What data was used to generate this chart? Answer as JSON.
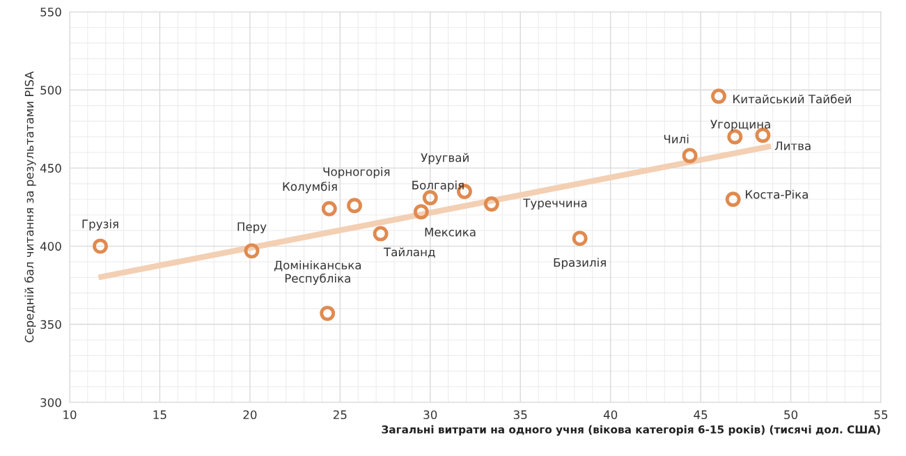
{
  "chart_data": {
    "type": "scatter",
    "xlabel": "Загальні витрати на одного учня (вікова категорія 6-15 років) (тисячі дол. США)",
    "ylabel": "Середній бал читання за результатами PISA",
    "xlim": [
      10,
      55
    ],
    "xticks": [
      10,
      15,
      20,
      25,
      30,
      35,
      40,
      45,
      50,
      55
    ],
    "ylim": [
      300,
      550
    ],
    "yticks": [
      300,
      350,
      400,
      450,
      500,
      550
    ],
    "grid": true,
    "series": [
      {
        "marker": "circle",
        "color": "#e08a4f",
        "x": [
          11.7,
          20.1,
          24.4,
          25.8,
          27.25,
          24.3,
          29.5,
          30.0,
          31.9,
          33.4,
          38.3,
          44.4,
          46.8,
          46.0,
          46.9,
          48.45
        ],
        "values": [
          400,
          397,
          424,
          426,
          408,
          357,
          422,
          431,
          435,
          427,
          405,
          458,
          430,
          496,
          470,
          471
        ]
      },
      {
        "type": "line",
        "color": "#f3cfb3",
        "x": [
          11.6,
          48.9
        ],
        "values": [
          380,
          464
        ]
      }
    ],
    "annotations": [
      {
        "text": "Грузія",
        "x": 11.7,
        "y": 400
      },
      {
        "text": "Перу",
        "x": 20.1,
        "y": 397
      },
      {
        "text": "Колумбія",
        "x": 24.4,
        "y": 424
      },
      {
        "text": "Чорногорія",
        "x": 25.8,
        "y": 426
      },
      {
        "text": "Тайланд",
        "x": 27.25,
        "y": 408
      },
      {
        "text": "Домініканська\nРеспубліка",
        "x": 24.3,
        "y": 357
      },
      {
        "text": "Мексика",
        "x": 29.5,
        "y": 422
      },
      {
        "text": "Болгарія",
        "x": 30.0,
        "y": 431
      },
      {
        "text": "Уругвай",
        "x": 31.9,
        "y": 435
      },
      {
        "text": "Туреччина",
        "x": 33.4,
        "y": 427
      },
      {
        "text": "Бразилія",
        "x": 38.3,
        "y": 405
      },
      {
        "text": "Чилі",
        "x": 44.4,
        "y": 458
      },
      {
        "text": "Коста-Ріка",
        "x": 46.8,
        "y": 430
      },
      {
        "text": "Китайський Тайбей",
        "x": 46.0,
        "y": 496
      },
      {
        "text": "Угорщина",
        "x": 46.9,
        "y": 470
      },
      {
        "text": "Литва",
        "x": 48.45,
        "y": 471
      }
    ]
  }
}
